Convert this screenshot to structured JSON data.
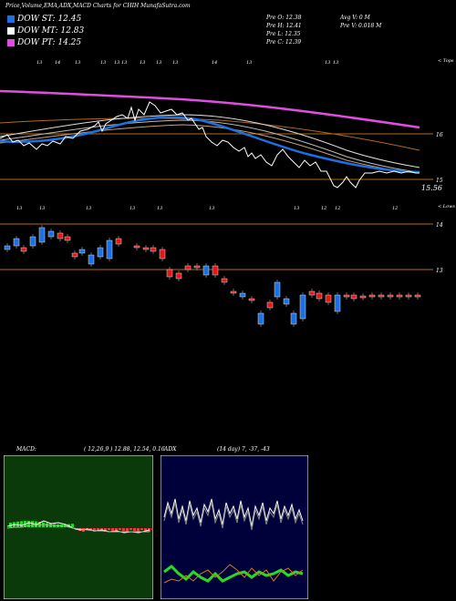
{
  "header": {
    "title": "Price,Volume,EMA,ADX,MACD Charts for CHIH MunafaSutra.com"
  },
  "legend": [
    {
      "label": "DOW ST: 12.45",
      "color": "#1e6fe0"
    },
    {
      "label": "DOW MT: 12.83",
      "color": "#ffffff"
    },
    {
      "label": "DOW PT: 14.25",
      "color": "#e04de0"
    }
  ],
  "stats": {
    "open": "Pre   O: 12.38",
    "high": "Pre   H: 12.41",
    "low": "Pre   L: 12.35",
    "close": "Pre   C: 12.39",
    "avg": "Avg V: 0   M",
    "vol": "Pre   V: 0.018 M"
  },
  "upper_panel": {
    "top_ticks": [
      "13",
      "14",
      "13",
      "13",
      "13",
      "13",
      "13",
      "13",
      "13",
      "14",
      "13",
      "13",
      "13"
    ],
    "bottom_ticks": [
      "13",
      "13",
      "13",
      "13",
      "13",
      "13",
      "13",
      "12",
      "12",
      "12"
    ],
    "price_labels": {
      "top": "16",
      "mid": "15",
      "last": "15.56"
    },
    "corner_top": "< Tops",
    "corner_bottom": "< Lows"
  },
  "candle_panel": {
    "price_labels": {
      "top": "14",
      "mid": "13"
    }
  },
  "macd": {
    "label": "MACD:",
    "params": "( 12,26,9 ) 12.88,  12.54,  0.16"
  },
  "adx": {
    "label": "ADX",
    "params": "(14  day) 7,  -37,  -43"
  },
  "colors": {
    "blue": "#1e6fe0",
    "magenta": "#e04de0",
    "orange": "#b06a1a",
    "macd_bg": "#0a3a0a",
    "adx_bg": "#00003a"
  }
}
